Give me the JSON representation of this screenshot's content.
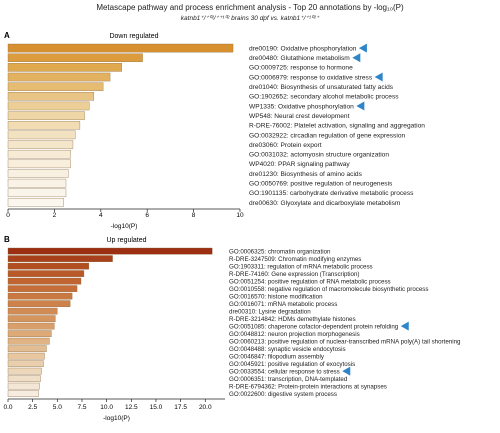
{
  "figure": {
    "title": "Metascape pathway and process enrichment analysis - Top 20 annotations by -log₁₀(P)",
    "subtitle": "katnb1⁺/⁺⁰²/⁺⁺¹⁰² brains 30 dpf vs. katnb1⁺/⁺¹⁰²⁺"
  },
  "chart_data": [
    {
      "panel": "A",
      "type": "bar",
      "orientation": "horizontal",
      "title": "Down regulated",
      "xlabel": "-log10(P)",
      "xlim": [
        0,
        10
      ],
      "xticks": [
        0,
        2,
        4,
        6,
        8,
        10
      ],
      "grid": false,
      "marker_color": "#2e86c8",
      "categories": [
        "dre00190: Oxidative phosphorylation",
        "dre00480: Glutathione metabolism",
        "GO:0009725: response to hormone",
        "GO:0006979: response to oxidative stress",
        "dre01040: Biosynthesis of unsaturated fatty acids",
        "GO:1902652: secondary alcohol metabolic process",
        "WP1335: Oxidative phosphorylation",
        "WP548: Neural crest development",
        "R-DRE-76002: Platelet activation, signaling and aggregation",
        "GO:0032922: circadian regulation of gene expression",
        "dre03060: Protein export",
        "GO:0031032: actomyosin structure organization",
        "WP4020: PPAR signaling pathway",
        "dre01230: Biosynthesis of amino acids",
        "GO:0050769: positive regulation of neurogenesis",
        "GO:1901135: carbohydrate derivative metabolic process",
        "dre00630: Glyoxylate and dicarboxylate metabolism"
      ],
      "values": [
        9.7,
        5.8,
        4.9,
        4.4,
        4.1,
        3.7,
        3.5,
        3.3,
        3.1,
        2.9,
        2.8,
        2.7,
        2.7,
        2.6,
        2.5,
        2.5,
        2.4
      ],
      "colors": [
        "#d7902f",
        "#dc9c3d",
        "#e0a94e",
        "#e3b260",
        "#e6bc73",
        "#e9c585",
        "#ecce97",
        "#efd6a6",
        "#f1dcb4",
        "#f3e2c1",
        "#f4e6cb",
        "#f6ebd5",
        "#f7eedc",
        "#f8f1e2",
        "#f9f3e7",
        "#faf5eb",
        "#fbf7ef"
      ],
      "flagged": [
        0,
        1,
        3,
        6
      ]
    },
    {
      "panel": "B",
      "type": "bar",
      "orientation": "horizontal",
      "title": "Up regulated",
      "xlabel": "-log10(P)",
      "xlim": [
        0,
        22
      ],
      "xticks": [
        0.0,
        2.5,
        5.0,
        7.5,
        10.0,
        12.5,
        15.0,
        17.5,
        20.0
      ],
      "grid": false,
      "marker_color": "#2e86c8",
      "categories": [
        "GO:0006325: chromatin organization",
        "R-DRE-3247509: Chromatin modifying enzymes",
        "GO:1903311: regulation of mRNA metabolic process",
        "R-DRE-74160: Gene expression (Transcription)",
        "GO:0051254: positive regulation of RNA metabolic process",
        "GO:0010558: negative regulation of macromolecule biosynthetic process",
        "GO:0016570: histone modification",
        "GO:0016071: mRNA metabolic process",
        "dre00310: Lysine degradation",
        "R-DRE-3214842: HDMs demethylate histones",
        "GO:0051085: chaperone cofactor-dependent protein refolding",
        "GO:0048812: neuron projection morphogenesis",
        "GO:0060213: positive regulation of nuclear-transcribed mRNA poly(A) tail shortening",
        "GO:0048488: synaptic vesicle endocytosis",
        "GO:0046847: filopodium assembly",
        "GO:0045921: positive regulation of exocytosis",
        "GO:0033554: cellular response to stress",
        "GO:0006351: transcription, DNA-templated",
        "R-DRE-6794362: Protein-protein interactions at synapses",
        "GO:0022600: digestive system process"
      ],
      "values": [
        20.7,
        10.6,
        8.2,
        7.7,
        7.4,
        7.0,
        6.5,
        6.3,
        5.0,
        4.8,
        4.7,
        4.4,
        4.2,
        3.9,
        3.7,
        3.6,
        3.4,
        3.3,
        3.2,
        3.1
      ],
      "colors": [
        "#9c2f12",
        "#a8411b",
        "#b14f22",
        "#b9592a",
        "#c06431",
        "#c56e39",
        "#c97842",
        "#cd814b",
        "#d18b55",
        "#d5955f",
        "#d99f6b",
        "#dca977",
        "#e0b384",
        "#e3bd92",
        "#e7c6a0",
        "#eacfae",
        "#edd7bb",
        "#f0dfc8",
        "#f3e6d4",
        "#f6ece0"
      ],
      "flagged": [
        10,
        16
      ]
    }
  ]
}
